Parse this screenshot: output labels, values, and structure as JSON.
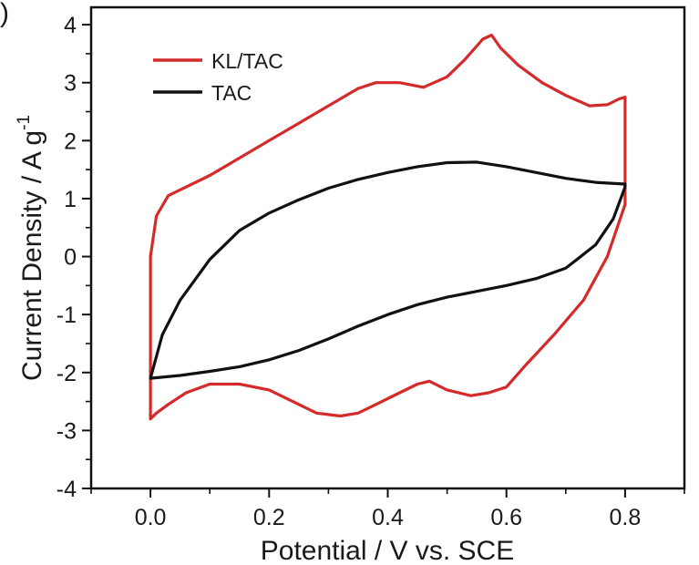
{
  "panel_label": ")",
  "chart_data": {
    "type": "line",
    "title": "",
    "xlabel": "Potential / V vs. SCE",
    "ylabel": "Current Density / A g",
    "ylabel_sup": "-1",
    "xlim": [
      -0.1,
      0.9
    ],
    "ylim": [
      -4,
      4.3
    ],
    "x_ticks": [
      0.0,
      0.2,
      0.4,
      0.6,
      0.8
    ],
    "x_tick_labels": [
      "0.0",
      "0.2",
      "0.4",
      "0.6",
      "0.8"
    ],
    "y_ticks": [
      -4,
      -3,
      -2,
      -1,
      0,
      1,
      2,
      3,
      4
    ],
    "y_tick_labels": [
      "-4",
      "-3",
      "-2",
      "-1",
      "0",
      "1",
      "2",
      "3",
      "4"
    ],
    "grid": false,
    "legend_position": "top-left",
    "series": [
      {
        "name": "KL/TAC",
        "color": "#d42a2a",
        "x": [
          0.0,
          0.0,
          0.01,
          0.03,
          0.06,
          0.1,
          0.15,
          0.2,
          0.25,
          0.3,
          0.35,
          0.38,
          0.42,
          0.46,
          0.5,
          0.53,
          0.56,
          0.575,
          0.59,
          0.62,
          0.66,
          0.7,
          0.74,
          0.77,
          0.79,
          0.8,
          0.8,
          0.8,
          0.79,
          0.77,
          0.73,
          0.68,
          0.63,
          0.6,
          0.57,
          0.54,
          0.5,
          0.47,
          0.45,
          0.42,
          0.38,
          0.35,
          0.32,
          0.28,
          0.24,
          0.2,
          0.15,
          0.1,
          0.06,
          0.03,
          0.01,
          0.0,
          0.0
        ],
        "y": [
          -2.8,
          0.0,
          0.7,
          1.05,
          1.2,
          1.4,
          1.7,
          2.0,
          2.3,
          2.6,
          2.9,
          3.0,
          3.0,
          2.92,
          3.1,
          3.4,
          3.75,
          3.82,
          3.6,
          3.3,
          3.0,
          2.78,
          2.6,
          2.62,
          2.72,
          2.75,
          1.5,
          0.9,
          0.6,
          0.0,
          -0.75,
          -1.35,
          -1.9,
          -2.25,
          -2.35,
          -2.4,
          -2.3,
          -2.15,
          -2.2,
          -2.35,
          -2.55,
          -2.7,
          -2.75,
          -2.7,
          -2.5,
          -2.3,
          -2.2,
          -2.2,
          -2.35,
          -2.55,
          -2.7,
          -2.8,
          -2.8
        ]
      },
      {
        "name": "TAC",
        "color": "#111111",
        "x": [
          0.0,
          0.02,
          0.05,
          0.1,
          0.15,
          0.2,
          0.25,
          0.3,
          0.35,
          0.4,
          0.45,
          0.5,
          0.55,
          0.6,
          0.65,
          0.7,
          0.75,
          0.8,
          0.8,
          0.78,
          0.75,
          0.7,
          0.65,
          0.6,
          0.55,
          0.5,
          0.45,
          0.4,
          0.35,
          0.3,
          0.25,
          0.2,
          0.15,
          0.1,
          0.05,
          0.0
        ],
        "y": [
          -2.1,
          -1.35,
          -0.75,
          -0.05,
          0.45,
          0.75,
          0.98,
          1.18,
          1.33,
          1.45,
          1.55,
          1.62,
          1.63,
          1.55,
          1.45,
          1.35,
          1.28,
          1.25,
          1.2,
          0.65,
          0.2,
          -0.2,
          -0.38,
          -0.5,
          -0.6,
          -0.7,
          -0.83,
          -1.0,
          -1.2,
          -1.42,
          -1.62,
          -1.78,
          -1.9,
          -1.98,
          -2.05,
          -2.1
        ]
      }
    ]
  }
}
